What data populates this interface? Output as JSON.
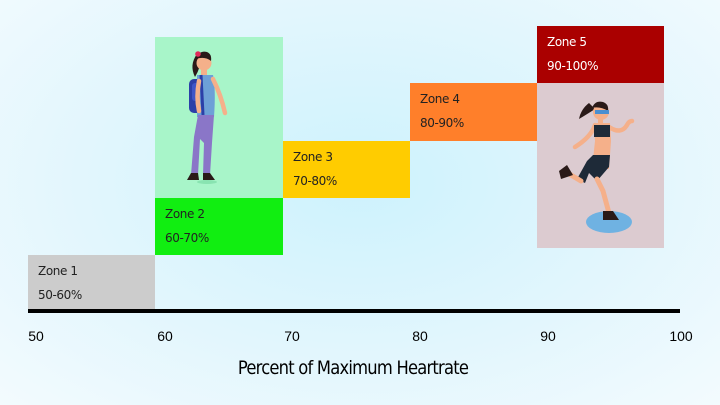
{
  "zones": [
    {
      "name": "Zone 1",
      "range": "50-60%",
      "color": "#cccccc"
    },
    {
      "name": "Zone 2",
      "range": "60-70%",
      "color": "#11ee11"
    },
    {
      "name": "Zone 3",
      "range": "70-80%",
      "color": "#ffcc00"
    },
    {
      "name": "Zone 4",
      "range": "80-90%",
      "color": "#ff7f2a"
    },
    {
      "name": "Zone 5",
      "range": "90-100%",
      "color": "#aa0000"
    }
  ],
  "axis": {
    "ticks": [
      "50",
      "60",
      "70",
      "80",
      "90",
      "100"
    ],
    "title": "Percent of Maximum Heartrate"
  },
  "illustrations": [
    "walking-woman-with-backpack",
    "running-woman"
  ]
}
